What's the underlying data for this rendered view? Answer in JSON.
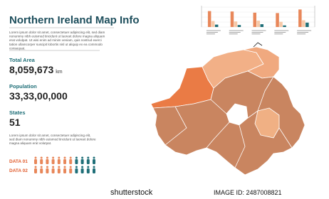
{
  "header": {
    "title": "Northern Ireland Map Info"
  },
  "intro": {
    "lines": [
      "Lorem ipsum dolor sit amet, consectetuer adipiscing elit, sed diam",
      "nonummy nibh euismod tincidunt ut laoreet dolore magna aliquam",
      "erat volutpat. Ut wisi enim ad minim veniam, quis nostrud exerci",
      "tation ullamcorper suscipit lobortis nisl ut aliquip ex ea commodo",
      "consequat."
    ]
  },
  "stats": [
    {
      "label": "Total Area",
      "value": "8,059,673",
      "unit": "km"
    },
    {
      "label": "Population",
      "value": "33,33,00,000"
    },
    {
      "label": "States",
      "value": "51"
    }
  ],
  "outro": {
    "lines": [
      "Lorem ipsum dolor sit amet, consectetuer adipiscing elit,",
      "sed diam nonummy nibh euismod tincidunt ut laoreet dolore",
      "magna aliquam erat volutpat."
    ]
  },
  "data_rows": [
    "DATA 01",
    "DATA 02"
  ],
  "chart_data": {
    "type": "bar",
    "ylim": [
      0,
      100
    ],
    "series": [
      {
        "color": "#e8875a",
        "values": [
          80,
          78,
          72,
          70,
          88
        ]
      },
      {
        "color": "#f6c9a8",
        "values": [
          30,
          28,
          32,
          26,
          34
        ]
      },
      {
        "color": "#1f6f78",
        "values": [
          12,
          10,
          14,
          8,
          22
        ]
      }
    ]
  },
  "watermark": {
    "brand": "shutterstock",
    "id": "IMAGE ID: 2487008821"
  }
}
